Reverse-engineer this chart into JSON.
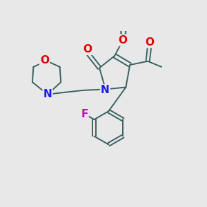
{
  "background_color": "#e8e8e8",
  "bond_color": "#3a6060",
  "atom_colors": {
    "N": "#1a1aee",
    "O": "#dd0000",
    "F": "#cc00cc",
    "H": "#408080",
    "C": "#3a6060"
  },
  "font_size_atoms": 11,
  "font_size_small": 9,
  "lw": 1.4
}
